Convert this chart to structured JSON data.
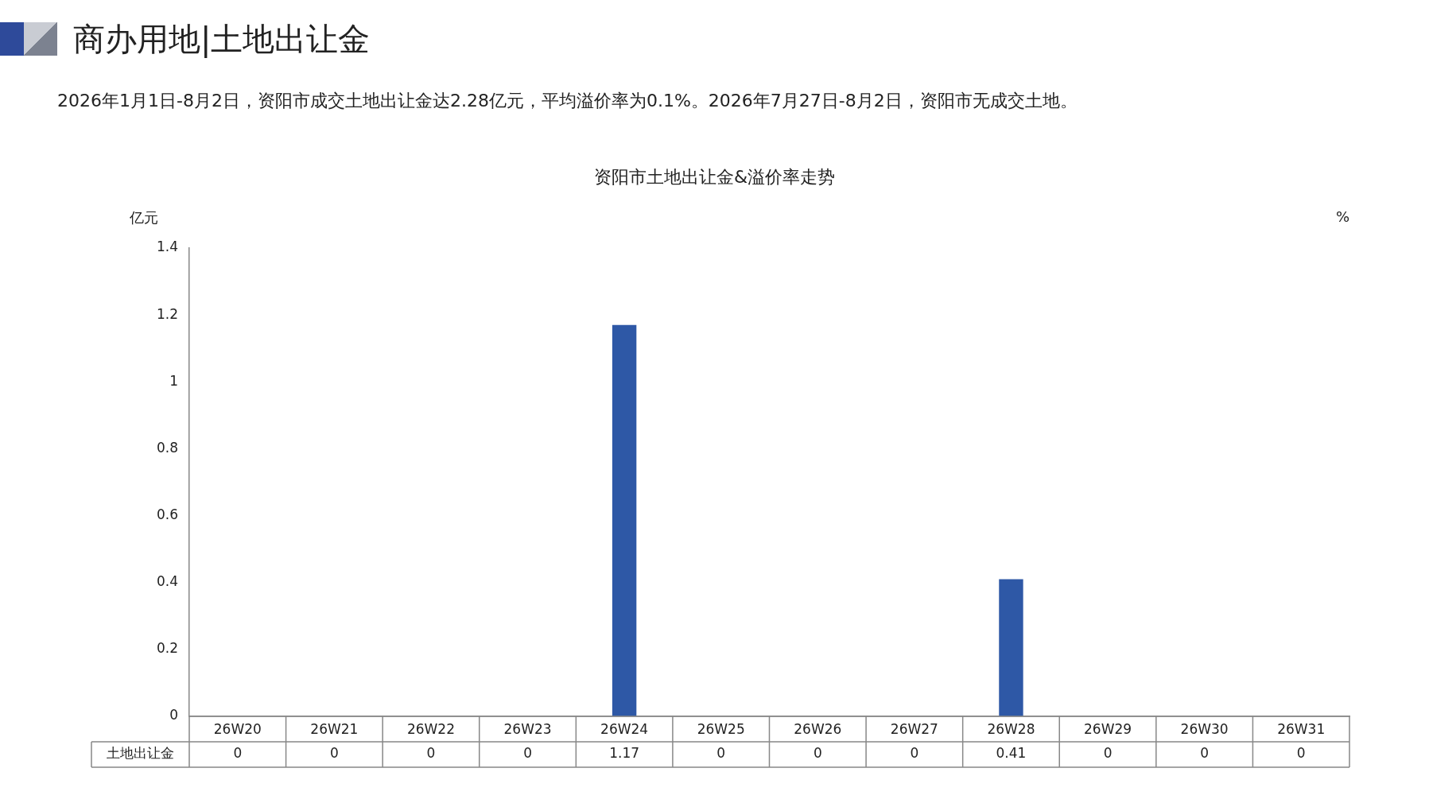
{
  "chart_data": {
    "type": "bar",
    "title": "商办用地|土地出让金",
    "subtitle": "2026年1月1日-8月2日，资阳市成交土地出让金达2.28亿元，平均溢价率为0.1%。2026年7月27日-8月2日，资阳市无成交土地。",
    "annotations": [
      "资阳市土地出让金&溢价率走势"
    ],
    "ylabel": "亿元",
    "y2label": "%",
    "categories": [
      "26W20",
      "26W21",
      "26W22",
      "26W23",
      "26W24",
      "26W25",
      "26W26",
      "26W27",
      "26W28",
      "26W29",
      "26W30",
      "26W31"
    ],
    "series": [
      {
        "name": "土地出让金",
        "color": "#2e58a6",
        "values": [
          0,
          0,
          0,
          0,
          1.17,
          0,
          0,
          0,
          0.41,
          0,
          0,
          0
        ]
      }
    ],
    "ylim": [
      0,
      1.4
    ],
    "yticks": [
      0,
      0.2,
      0.4,
      0.6,
      0.8,
      1,
      1.2,
      1.4
    ],
    "data_labels": true,
    "legend": false,
    "grid": false
  }
}
